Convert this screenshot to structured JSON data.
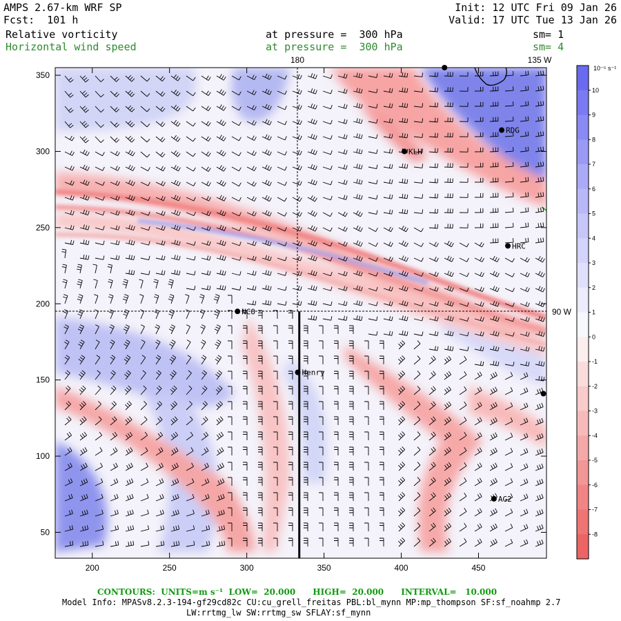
{
  "header": {
    "model": "AMPS 2.67-km WRF SP",
    "forecast": "Fcst:  101 h",
    "init": "Init: 12 UTC Fri 09 Jan 26",
    "valid": "Valid: 17 UTC Tue 13 Jan 26",
    "field1": {
      "name": "Relative vorticity",
      "level": "at pressure =  300 hPa",
      "smooth": "sm= 1"
    },
    "field2": {
      "name": "Horizontal wind speed",
      "level": "at pressure =  300 hPa",
      "smooth": "sm= 4"
    }
  },
  "map": {
    "x_axis": {
      "ticks": [
        "200",
        "250",
        "300",
        "350",
        "400",
        "450"
      ],
      "range": [
        176,
        494
      ]
    },
    "y_axis": {
      "ticks": [
        "50",
        "100",
        "150",
        "200",
        "250",
        "300",
        "350"
      ],
      "range": [
        33,
        355
      ]
    },
    "meridian_labels": [
      "180",
      "135 W"
    ],
    "parallel_labels": [
      "90 W"
    ],
    "stations": [
      {
        "name": "RDG",
        "x": 465,
        "y": 314
      },
      {
        "name": "KLH",
        "x": 402,
        "y": 300
      },
      {
        "name": "HRC",
        "x": 469,
        "y": 238
      },
      {
        "name": "NCO",
        "x": 294,
        "y": 195
      },
      {
        "name": "Henry",
        "x": 333,
        "y": 155
      },
      {
        "name": "AG2",
        "x": 460,
        "y": 72
      },
      {
        "name": "",
        "x": 428,
        "y": 355
      },
      {
        "name": "",
        "x": 492,
        "y": 141
      }
    ],
    "section_line": {
      "x": 334,
      "y_from": 33,
      "y_to": 195
    }
  },
  "colorbar": {
    "unit": "10⁻⁵ s⁻¹",
    "labels": [
      "10",
      "9",
      "8",
      "7",
      "6",
      "5",
      "4",
      "3",
      "2",
      "1",
      "0",
      "-1",
      "-2",
      "-3",
      "-4",
      "-5",
      "-6",
      "-7",
      "-8"
    ],
    "colors": [
      "#6a6af0",
      "#7a7af2",
      "#8a8af4",
      "#9a9af6",
      "#aaaaf8",
      "#b8b8f9",
      "#c6c6fa",
      "#d3d3fb",
      "#e0e0fc",
      "#ececfd",
      "#f7f7fe",
      "#fdeeee",
      "#fbdcdc",
      "#f9cbcb",
      "#f7baba",
      "#f5a8a8",
      "#f39696",
      "#f18585",
      "#ef7474",
      "#ed6464"
    ]
  },
  "footer": {
    "contours": "CONTOURS:  UNITS=m s⁻¹  LOW=  20.000      HIGH=  20.000      INTERVAL=   10.000",
    "model_info": "Model Info: MPASv8.2.3-194-gf29cd82c CU:cu_grell_freitas PBL:bl_mynn MP:mp_thompson SF:sf_noahmp 2.7",
    "model_info2": "LW:rrtmg_lw SW:rrtmg_sw SFLAY:sf_mynn"
  }
}
